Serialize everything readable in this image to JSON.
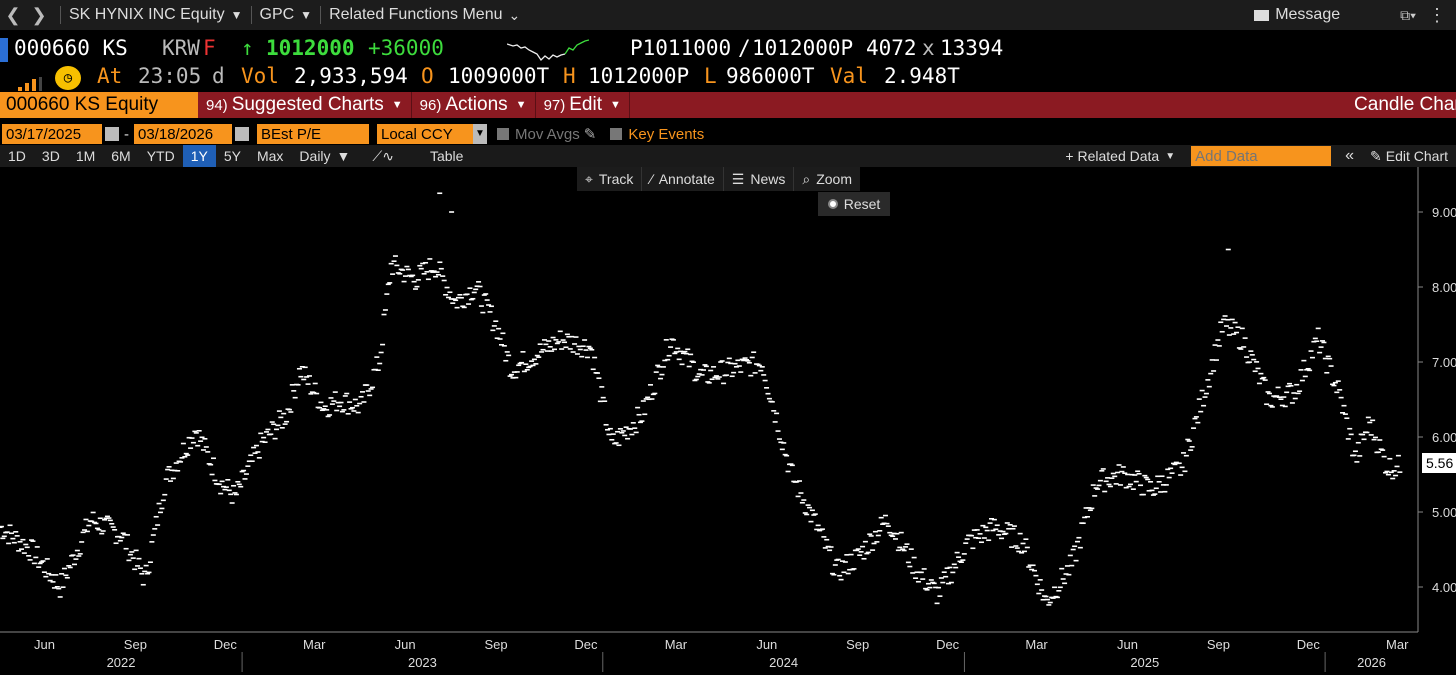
{
  "nav": {
    "security": "SK HYNIX INC Equity",
    "function": "GPC",
    "related": "Related Functions Menu",
    "message": "Message"
  },
  "quote": {
    "ticker": "000660 KS",
    "currency": "KRW",
    "flag": "F",
    "last": "1012000",
    "change": "+36000",
    "bid": "P1011000",
    "ask": "1012000P",
    "bid_size": "4072",
    "ask_size": "13394",
    "time_label": "At",
    "time": "23:05",
    "time_flag": "d",
    "vol_label": "Vol",
    "vol": "2,933,594",
    "open_label": "O",
    "open": "1009000T",
    "high_label": "H",
    "high": "1012000P",
    "low_label": "L",
    "low": "986000T",
    "val_label": "Val",
    "val": "2.948T"
  },
  "redbar": {
    "equity": "000660 KS Equity",
    "menu1_num": "94)",
    "menu1": "Suggested Charts",
    "menu2_num": "96)",
    "menu2": "Actions",
    "menu3_num": "97)",
    "menu3": "Edit",
    "title": "Candle Chart"
  },
  "filters": {
    "start": "03/17/2025",
    "end": "03/18/2026",
    "field": "BEst P/E",
    "ccy": "Local CCY",
    "mov_avgs": "Mov Avgs",
    "key_events": "Key Events"
  },
  "periods": [
    "1D",
    "3D",
    "1M",
    "6M",
    "YTD",
    "1Y",
    "5Y",
    "Max"
  ],
  "active_period": "1Y",
  "frequency": "Daily",
  "table_label": "Table",
  "related_data": "+ Related Data",
  "add_data_placeholder": "Add Data",
  "edit_chart": "Edit Chart",
  "tools": {
    "track": "Track",
    "annotate": "Annotate",
    "news": "News",
    "zoom": "Zoom",
    "reset": "Reset"
  },
  "colors": {
    "accent_orange": "#f7941d",
    "brand_red": "#8b1a22",
    "up_green": "#3ddc3d",
    "active_blue": "#1f5fb6"
  },
  "chart_data": {
    "type": "scatter",
    "ylim": [
      3.4,
      9.6
    ],
    "y_ticks": [
      "9.00",
      "8.00",
      "7.00",
      "6.00",
      "5.00",
      "4.00"
    ],
    "last_value": "5.56",
    "x_month_labels": [
      "Jun",
      "Sep",
      "Dec",
      "Mar",
      "Jun",
      "Sep",
      "Dec",
      "Mar",
      "Jun",
      "Sep",
      "Dec",
      "Mar",
      "Jun",
      "Sep",
      "Dec",
      "Mar"
    ],
    "x_year_labels": [
      "2022",
      "2023",
      "2024",
      "2025",
      "2026"
    ],
    "x_start": "2022-05-01",
    "x_end": "2026-04-05",
    "anchors": [
      [
        "2022-05-01",
        4.8
      ],
      [
        "2022-06-01",
        4.5
      ],
      [
        "2022-07-01",
        4.0
      ],
      [
        "2022-08-01",
        4.9
      ],
      [
        "2022-09-01",
        4.7
      ],
      [
        "2022-09-25",
        4.1
      ],
      [
        "2022-10-15",
        5.4
      ],
      [
        "2022-11-15",
        6.1
      ],
      [
        "2022-12-10",
        5.4
      ],
      [
        "2022-12-25",
        5.2
      ],
      [
        "2023-01-20",
        5.9
      ],
      [
        "2023-02-15",
        6.3
      ],
      [
        "2023-03-01",
        6.9
      ],
      [
        "2023-03-25",
        6.4
      ],
      [
        "2023-04-10",
        6.5
      ],
      [
        "2023-05-01",
        6.4
      ],
      [
        "2023-05-20",
        7.0
      ],
      [
        "2023-06-01",
        8.3
      ],
      [
        "2023-06-25",
        8.1
      ],
      [
        "2023-07-15",
        8.3
      ],
      [
        "2023-08-05",
        7.8
      ],
      [
        "2023-08-25",
        8.0
      ],
      [
        "2023-09-15",
        7.5
      ],
      [
        "2023-10-01",
        6.9
      ],
      [
        "2023-10-25",
        7.1
      ],
      [
        "2023-11-20",
        7.3
      ],
      [
        "2023-12-20",
        7.2
      ],
      [
        "2024-01-10",
        5.9
      ],
      [
        "2024-02-10",
        6.3
      ],
      [
        "2024-03-10",
        7.3
      ],
      [
        "2024-04-10",
        6.8
      ],
      [
        "2024-05-10",
        6.9
      ],
      [
        "2024-06-10",
        7.0
      ],
      [
        "2024-07-10",
        5.5
      ],
      [
        "2024-08-05",
        4.8
      ],
      [
        "2024-08-25",
        4.2
      ],
      [
        "2024-09-15",
        4.4
      ],
      [
        "2024-10-15",
        4.9
      ],
      [
        "2024-11-15",
        4.2
      ],
      [
        "2024-12-05",
        3.9
      ],
      [
        "2025-01-05",
        4.6
      ],
      [
        "2025-02-01",
        4.8
      ],
      [
        "2025-03-01",
        4.6
      ],
      [
        "2025-03-25",
        3.8
      ],
      [
        "2025-04-20",
        4.3
      ],
      [
        "2025-05-15",
        5.4
      ],
      [
        "2025-06-10",
        5.5
      ],
      [
        "2025-07-10",
        5.3
      ],
      [
        "2025-08-10",
        5.6
      ],
      [
        "2025-09-01",
        6.6
      ],
      [
        "2025-09-20",
        7.5
      ],
      [
        "2025-10-10",
        7.3
      ],
      [
        "2025-11-05",
        6.5
      ],
      [
        "2025-12-01",
        6.6
      ],
      [
        "2025-12-25",
        7.3
      ],
      [
        "2026-01-15",
        6.6
      ],
      [
        "2026-02-01",
        5.7
      ],
      [
        "2026-02-15",
        6.2
      ],
      [
        "2026-03-05",
        5.6
      ],
      [
        "2026-03-18",
        5.6
      ]
    ]
  }
}
